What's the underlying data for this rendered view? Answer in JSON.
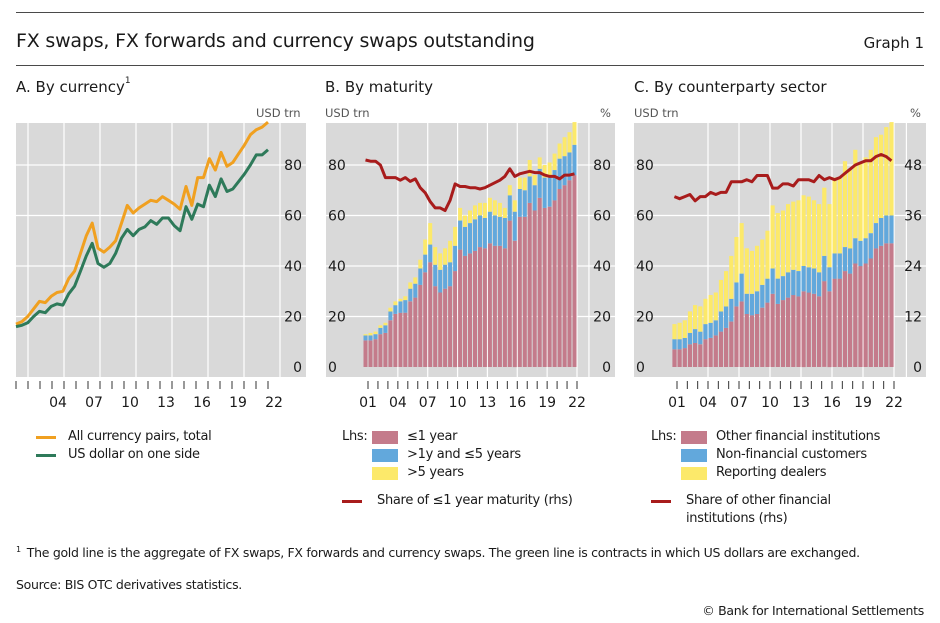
{
  "header": {
    "title": "FX swaps, FX forwards and currency swaps outstanding",
    "graph_number": "Graph 1"
  },
  "colors": {
    "plot_bg": "#d9d9d9",
    "grid": "#ffffff",
    "gold": "#f0a020",
    "green": "#2e7a5a",
    "le1y": "#c47b8b",
    "mid": "#62a8dc",
    "gt5y": "#fce96a",
    "share_line": "#a81c1c"
  },
  "panels": {
    "a": {
      "title": "A. By currency",
      "footnote_marker": "1",
      "unit_left": "USD trn"
    },
    "b": {
      "title": "B. By maturity",
      "unit_left": "USD trn",
      "unit_right": "%"
    },
    "c": {
      "title": "C. By counterparty sector",
      "unit_left": "USD trn",
      "unit_right": "%"
    }
  },
  "legend": {
    "a": {
      "items": [
        "All currency pairs, total",
        "US dollar on one side"
      ]
    },
    "b": {
      "prefix": "Lhs:",
      "items": [
        "≤1 year",
        ">1y and ≤5 years",
        ">5 years"
      ],
      "line": "Share of ≤1 year maturity (rhs)"
    },
    "c": {
      "prefix": "Lhs:",
      "items": [
        "Other financial institutions",
        "Non-financial customers",
        "Reporting dealers"
      ],
      "line1": "Share of other financial",
      "line2": "institutions (rhs)"
    }
  },
  "footnotes": {
    "note_marker": "1",
    "note": "The gold line is the aggregate of FX swaps, FX forwards and currency swaps. The green line is contracts in which US dollars are exchanged.",
    "source": "Source: BIS OTC derivatives statistics.",
    "copyright": "© Bank for International Settlements"
  },
  "chart_data": [
    {
      "id": "a",
      "type": "line",
      "title": "A. By currency",
      "ylabel": "USD trn",
      "ylim": [
        0,
        96
      ],
      "yticks": [
        0,
        20,
        40,
        60,
        80
      ],
      "xlim": [
        2000.5,
        2023.5
      ],
      "xtick_labels": [
        "04",
        "07",
        "10",
        "13",
        "16",
        "19",
        "22"
      ],
      "xtick_label_years": [
        2004,
        2007,
        2010,
        2013,
        2016,
        2019,
        2022
      ],
      "grid": true,
      "x": [
        2000.5,
        2001,
        2001.5,
        2002,
        2002.5,
        2003,
        2003.5,
        2004,
        2004.5,
        2005,
        2005.5,
        2006,
        2006.5,
        2007,
        2007.5,
        2008,
        2008.5,
        2009,
        2009.5,
        2010,
        2010.5,
        2011,
        2011.5,
        2012,
        2012.5,
        2013,
        2013.5,
        2014,
        2014.5,
        2015,
        2015.5,
        2016,
        2016.5,
        2017,
        2017.5,
        2018,
        2018.5,
        2019,
        2019.5,
        2020,
        2020.5,
        2021,
        2021.5,
        2022
      ],
      "series": [
        {
          "name": "All currency pairs, total",
          "color": "#f0a020",
          "values": [
            17,
            18,
            20,
            23,
            26,
            25.5,
            28,
            29.5,
            30,
            35,
            38,
            45,
            52,
            57,
            47,
            45.5,
            47.5,
            50,
            57,
            64,
            61,
            63,
            64.5,
            66,
            65.5,
            67.5,
            66,
            64.5,
            62.5,
            71.5,
            64,
            75,
            75,
            82.5,
            78,
            85,
            79.5,
            81,
            84.5,
            88,
            92,
            94,
            95,
            97
          ]
        },
        {
          "name": "US dollar on one side",
          "color": "#2e7a5a",
          "values": [
            16,
            16.5,
            17.5,
            20,
            22,
            21.5,
            24,
            25,
            24.5,
            29,
            32,
            38,
            44,
            49,
            41,
            39.5,
            41,
            45,
            51,
            54.5,
            52,
            54.5,
            55.5,
            58,
            56.5,
            59,
            59,
            56,
            54,
            63.5,
            58.5,
            64.5,
            63.5,
            72,
            67.5,
            74.5,
            69.5,
            70.5,
            73.5,
            76.5,
            80,
            84,
            84,
            86
          ]
        }
      ]
    },
    {
      "id": "b",
      "type": "bar",
      "stacked": true,
      "title": "B. By maturity",
      "ylabel": "USD trn",
      "ylabel_right": "%",
      "ylim": [
        0,
        96
      ],
      "yticks": [
        0,
        20,
        40,
        60,
        80
      ],
      "ylim_right": [
        0,
        96
      ],
      "yticks_right": [
        0,
        20,
        40,
        60,
        80
      ],
      "xtick_labels": [
        "01",
        "04",
        "07",
        "10",
        "13",
        "16",
        "19",
        "22"
      ],
      "grid": true,
      "series": [
        {
          "name": "≤1 year",
          "color": "#c47b8b",
          "values": [
            10.5,
            10.5,
            11,
            13,
            13.5,
            18.5,
            21,
            21.5,
            21.5,
            26,
            27.5,
            32.5,
            37.5,
            41.5,
            32,
            29.5,
            31,
            32,
            38,
            46.5,
            44,
            45,
            46,
            47.5,
            47,
            49,
            48,
            48,
            47,
            58,
            50,
            59.5,
            59.5,
            65,
            62,
            67,
            63,
            63.5,
            66,
            70.5,
            72,
            74,
            76
          ]
        },
        {
          "name": ">1y and ≤5 years",
          "color": "#62a8dc",
          "values": [
            2,
            2,
            2,
            2.5,
            3,
            3.5,
            3.5,
            4.5,
            5,
            5,
            5.5,
            6.5,
            7,
            7,
            8.5,
            9,
            9.5,
            9.5,
            10,
            11.5,
            11.5,
            12,
            12.5,
            12.5,
            12,
            12.5,
            12,
            11.5,
            12,
            10,
            11.5,
            11,
            10.5,
            10.5,
            10,
            11.5,
            12,
            11.5,
            12,
            12,
            11.5,
            11,
            12
          ]
        },
        {
          "name": ">5 years",
          "color": "#fce96a",
          "values": [
            0.5,
            1,
            1,
            1,
            1,
            1.5,
            1.5,
            1,
            1.5,
            2.5,
            2.5,
            3.5,
            6,
            8.5,
            7,
            6.5,
            6.5,
            8.5,
            7.5,
            5,
            4.5,
            5,
            5.5,
            5,
            6,
            5.5,
            6,
            5.5,
            4,
            4,
            4.5,
            4.5,
            5,
            6.5,
            4,
            4.5,
            5,
            6,
            6.5,
            6,
            7.5,
            8,
            9
          ]
        }
      ],
      "line": {
        "name": "Share of ≤1 year maturity (rhs)",
        "color": "#a81c1c",
        "axis": "right",
        "values": [
          82,
          81.5,
          81.5,
          80,
          75,
          75,
          75,
          74,
          75,
          73.5,
          74.5,
          71,
          69,
          65.5,
          63,
          63,
          62,
          66,
          72.5,
          71.5,
          71.5,
          71,
          71,
          70.5,
          71,
          72,
          73,
          74,
          75.5,
          78.5,
          75.5,
          76.5,
          77,
          77.5,
          77,
          77,
          76,
          75.5,
          75.5,
          74.5,
          76,
          76,
          76.5
        ]
      }
    },
    {
      "id": "c",
      "type": "bar",
      "stacked": true,
      "title": "C. By counterparty sector",
      "ylabel": "USD trn",
      "ylabel_right": "%",
      "ylim": [
        0,
        96
      ],
      "yticks": [
        0,
        20,
        40,
        60,
        80
      ],
      "ylim_right": [
        0,
        57.6
      ],
      "yticks_right": [
        0,
        12,
        24,
        36,
        48
      ],
      "xtick_labels": [
        "01",
        "04",
        "07",
        "10",
        "13",
        "16",
        "19",
        "22"
      ],
      "grid": true,
      "series": [
        {
          "name": "Other financial institutions",
          "color": "#c47b8b",
          "values": [
            7,
            7,
            7.5,
            9,
            9.5,
            9,
            11,
            11.5,
            12.5,
            14,
            15.5,
            18,
            24,
            26,
            21,
            20.5,
            21,
            23.5,
            25.5,
            29,
            25,
            26.5,
            27.5,
            28.5,
            28,
            30,
            29.5,
            29,
            28,
            34,
            30,
            35,
            35,
            38,
            37,
            41,
            40,
            41,
            43,
            47,
            48,
            49,
            49
          ]
        },
        {
          "name": "Non-financial customers",
          "color": "#62a8dc",
          "values": [
            4,
            4,
            4,
            4.5,
            5.5,
            5,
            6,
            6,
            6,
            8,
            8.5,
            9,
            9.5,
            11,
            8,
            8.5,
            9,
            9,
            9.5,
            10,
            10,
            9.5,
            10,
            10,
            10,
            10,
            10,
            10,
            9.5,
            10,
            9.5,
            10,
            10,
            9.5,
            10,
            10,
            10,
            10,
            10,
            10,
            11,
            11,
            11
          ]
        },
        {
          "name": "Reporting dealers",
          "color": "#fce96a",
          "values": [
            6,
            6.5,
            7,
            8.5,
            9.5,
            10,
            10,
            11,
            11,
            12.5,
            14,
            17,
            18,
            20,
            18,
            17,
            18,
            18,
            19,
            25,
            26,
            26,
            27,
            27,
            28,
            28,
            28,
            27,
            27,
            27,
            25,
            30,
            30,
            34,
            31,
            35,
            31,
            32,
            33,
            34,
            33,
            35,
            37
          ]
        }
      ],
      "line": {
        "name": "Share of other financial institutions (rhs)",
        "color": "#a81c1c",
        "axis": "right",
        "values": [
          40.5,
          40,
          40.5,
          41,
          39.5,
          40.5,
          40.5,
          41.5,
          41,
          41.5,
          41.5,
          44,
          44,
          44,
          44.5,
          44,
          45.5,
          45.5,
          45.5,
          42.5,
          42.5,
          43.5,
          43.5,
          43,
          44.5,
          44.5,
          44.5,
          44,
          45.5,
          44.5,
          45,
          44.5,
          45,
          46,
          47,
          48,
          48.5,
          49,
          49,
          50,
          50.5,
          50,
          49
        ]
      }
    }
  ]
}
